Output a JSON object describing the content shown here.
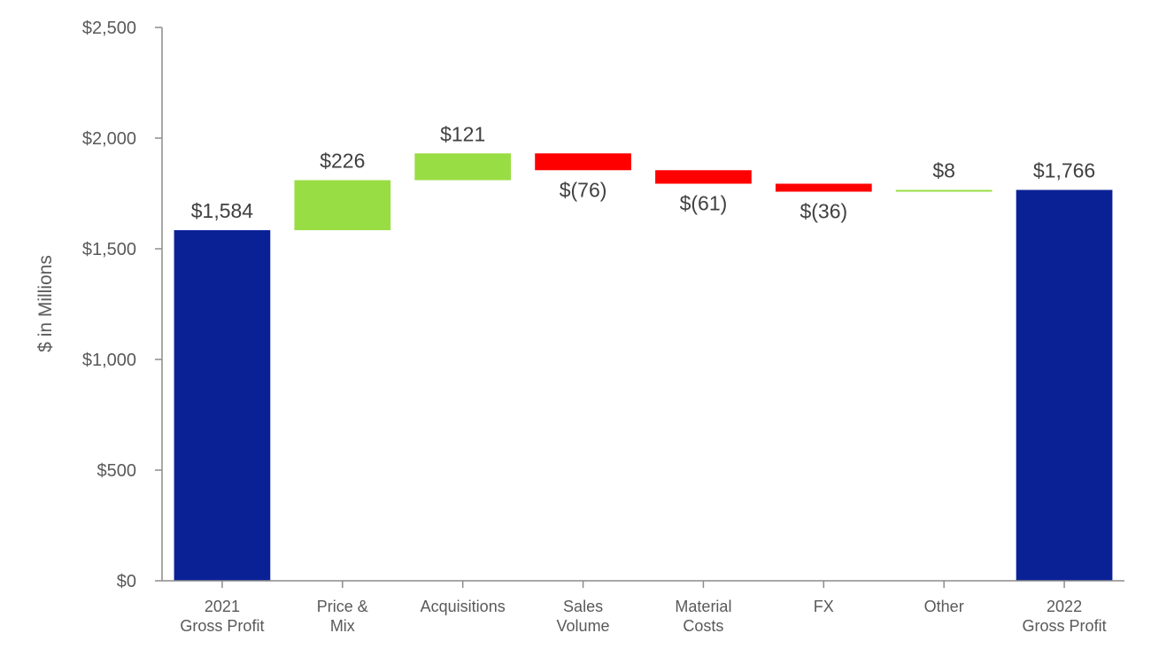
{
  "chart_data": {
    "type": "waterfall",
    "title": "",
    "ylabel": "$ in Millions",
    "xlabel": "",
    "ylim": [
      0,
      2500
    ],
    "yticks": [
      0,
      500,
      1000,
      1500,
      2000,
      2500
    ],
    "ytick_labels": [
      "$0",
      "$500",
      "$1,000",
      "$1,500",
      "$2,000",
      "$2,500"
    ],
    "categories": [
      [
        "2021",
        "Gross Profit"
      ],
      [
        "Price &",
        "Mix"
      ],
      [
        "Acquisitions"
      ],
      [
        "Sales",
        "Volume"
      ],
      [
        "Material",
        "Costs"
      ],
      [
        "FX"
      ],
      [
        "Other"
      ],
      [
        "2022",
        "Gross Profit"
      ]
    ],
    "values": [
      1584,
      226,
      121,
      -76,
      -61,
      -36,
      8,
      1766
    ],
    "kinds": [
      "total",
      "delta",
      "delta",
      "delta",
      "delta",
      "delta",
      "delta",
      "total"
    ],
    "data_labels": [
      "$1,584",
      "$226",
      "$121",
      "$(76)",
      "$(61)",
      "$(36)",
      "$8",
      "$1,766"
    ],
    "colors": {
      "total": "#0a2196",
      "increase": "#99dd44",
      "decrease": "#ff0000",
      "axis": "#8c8c8c",
      "text": "#595959"
    }
  }
}
